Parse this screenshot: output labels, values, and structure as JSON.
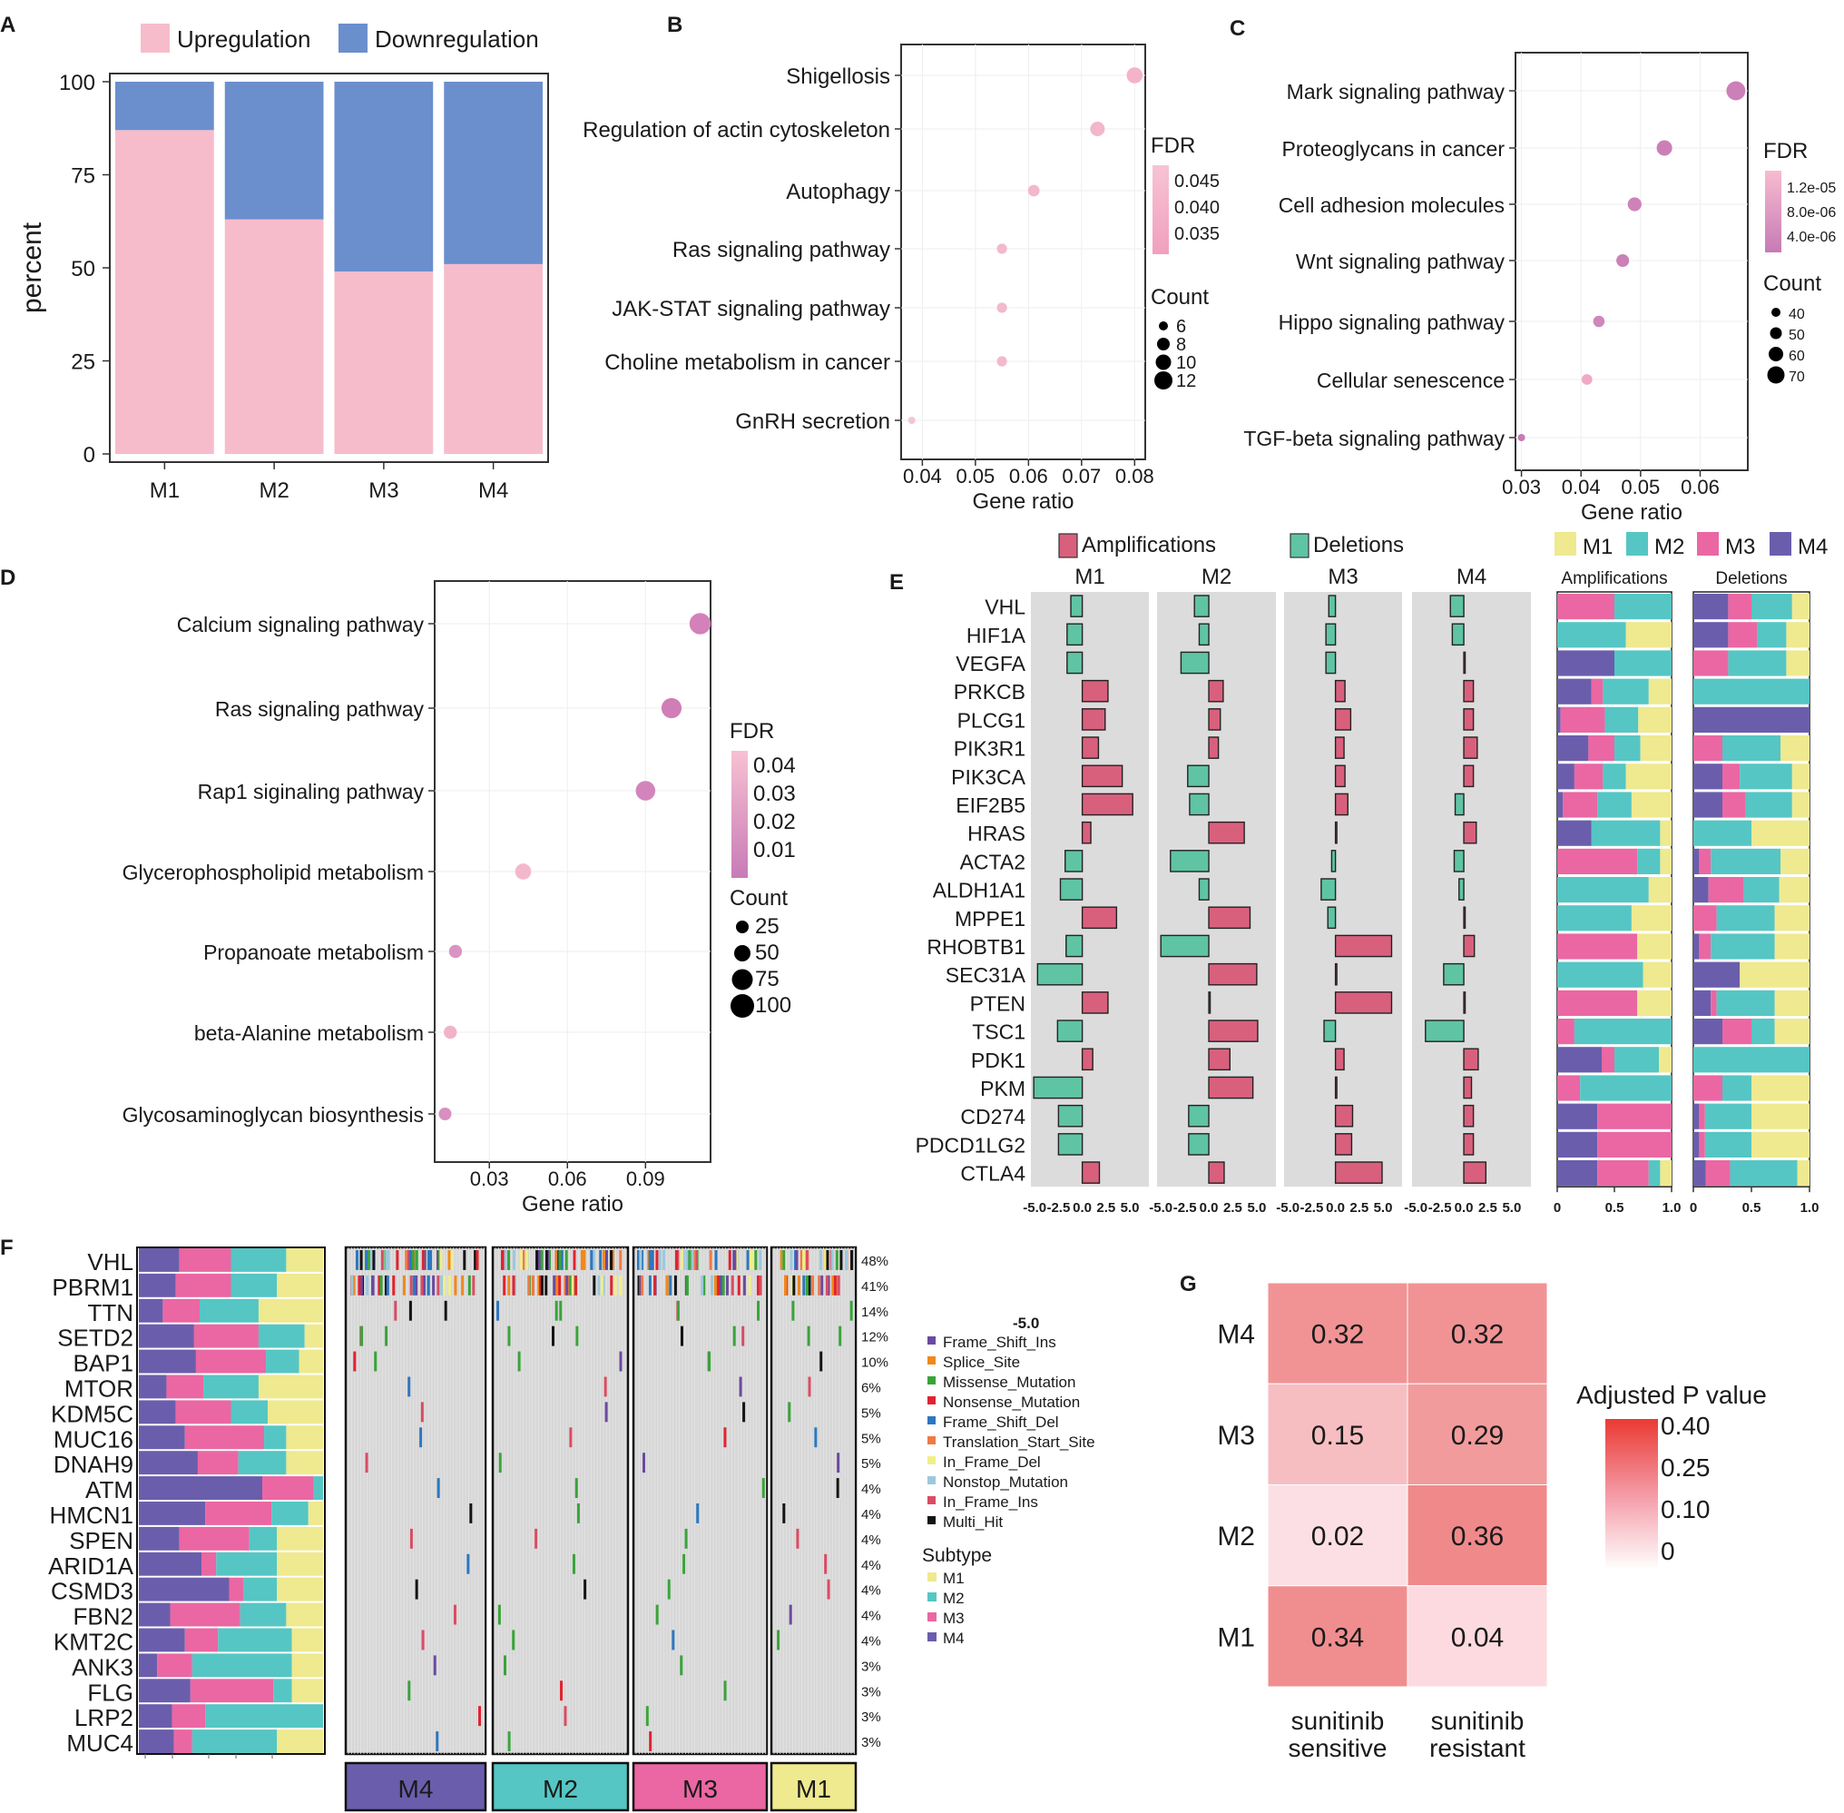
{
  "panels": {
    "a": "A",
    "b": "B",
    "c": "C",
    "d": "D",
    "e": "E",
    "f": "F",
    "g": "G"
  },
  "colors": {
    "up": "#f7bccb",
    "down": "#6b8fcc",
    "amp": "#d9607d",
    "del": "#5fc4a4",
    "m1": "#efe98f",
    "m2": "#55c6c4",
    "m3": "#ea67a3",
    "m4": "#6a5eac",
    "grey": "#dcdcdc"
  },
  "chart_data": [
    {
      "id": "A",
      "type": "bar",
      "stacked": true,
      "categories": [
        "M1",
        "M2",
        "M3",
        "M4"
      ],
      "series": [
        {
          "name": "Upregulation",
          "values": [
            87,
            63,
            49,
            51
          ]
        },
        {
          "name": "Downregulation",
          "values": [
            13,
            37,
            51,
            49
          ]
        }
      ],
      "ylabel": "percent",
      "ylim": [
        0,
        100
      ],
      "yticks": [
        0,
        25,
        50,
        75,
        100
      ],
      "legend": [
        "Upregulation",
        "Downregulation"
      ]
    },
    {
      "id": "B",
      "type": "scatter",
      "xlabel": "Gene ratio",
      "xlim": [
        0.036,
        0.082
      ],
      "xticks": [
        0.04,
        0.05,
        0.06,
        0.07,
        0.08
      ],
      "xtick_labels": [
        "0.04",
        "0.05",
        "0.06",
        "0.07",
        "0.08"
      ],
      "points": [
        {
          "label": "Shigellosis",
          "x": 0.08,
          "count": 12,
          "fdr": 0.035
        },
        {
          "label": "Regulation of actin cytoskeleton",
          "x": 0.073,
          "count": 11,
          "fdr": 0.038
        },
        {
          "label": "Autophagy",
          "x": 0.061,
          "count": 9,
          "fdr": 0.04
        },
        {
          "label": "Ras signaling pathway",
          "x": 0.055,
          "count": 8,
          "fdr": 0.042
        },
        {
          "label": "JAK-STAT signaling pathway",
          "x": 0.055,
          "count": 8,
          "fdr": 0.042
        },
        {
          "label": "Choline metabolism in cancer",
          "x": 0.055,
          "count": 8,
          "fdr": 0.042
        },
        {
          "label": "GnRH secretion",
          "x": 0.038,
          "count": 6,
          "fdr": 0.045
        }
      ],
      "fdr_title": "FDR",
      "fdr_ticks": [
        "0.045",
        "0.040",
        "0.035"
      ],
      "count_title": "Count",
      "count_ticks": [
        "6",
        "8",
        "10",
        "12"
      ]
    },
    {
      "id": "C",
      "type": "scatter",
      "xlabel": "Gene ratio",
      "xlim": [
        0.029,
        0.068
      ],
      "xticks": [
        0.03,
        0.04,
        0.05,
        0.06
      ],
      "xtick_labels": [
        "0.03",
        "0.04",
        "0.05",
        "0.06"
      ],
      "points": [
        {
          "label": "Mark signaling pathway",
          "x": 0.066,
          "count": 70,
          "fdr": 3e-06
        },
        {
          "label": "Proteoglycans in cancer",
          "x": 0.054,
          "count": 60,
          "fdr": 4e-06
        },
        {
          "label": "Cell adhesion molecules",
          "x": 0.049,
          "count": 55,
          "fdr": 5e-06
        },
        {
          "label": "Wnt signaling pathway",
          "x": 0.047,
          "count": 52,
          "fdr": 5e-06
        },
        {
          "label": "Hippo signaling pathway",
          "x": 0.043,
          "count": 48,
          "fdr": 6e-06
        },
        {
          "label": "Cellular senescence",
          "x": 0.041,
          "count": 46,
          "fdr": 1.2e-05
        },
        {
          "label": "TGF-beta signaling pathway",
          "x": 0.03,
          "count": 36,
          "fdr": 2e-06
        }
      ],
      "fdr_title": "FDR",
      "fdr_ticks": [
        "1.2e-05",
        "8.0e-06",
        "4.0e-06"
      ],
      "count_title": "Count",
      "count_ticks": [
        "40",
        "50",
        "60",
        "70"
      ]
    },
    {
      "id": "D",
      "type": "scatter",
      "xlabel": "Gene ratio",
      "xlim": [
        0.009,
        0.115
      ],
      "xticks": [
        0.03,
        0.06,
        0.09
      ],
      "xtick_labels": [
        "0.03",
        "0.06",
        "0.09"
      ],
      "points": [
        {
          "label": "Calcium signaling pathway",
          "x": 0.111,
          "count": 95,
          "fdr": 0.005
        },
        {
          "label": "Ras signaling pathway",
          "x": 0.1,
          "count": 85,
          "fdr": 0.006
        },
        {
          "label": "Rap1 siginaling pathway",
          "x": 0.09,
          "count": 80,
          "fdr": 0.008
        },
        {
          "label": "Glycerophospholipid metabolism",
          "x": 0.043,
          "count": 50,
          "fdr": 0.04
        },
        {
          "label": "Propanoate metabolism",
          "x": 0.017,
          "count": 25,
          "fdr": 0.02
        },
        {
          "label": "beta-Alanine metabolism",
          "x": 0.015,
          "count": 25,
          "fdr": 0.035
        },
        {
          "label": "Glycosaminoglycan biosynthesis",
          "x": 0.013,
          "count": 22,
          "fdr": 0.015
        }
      ],
      "fdr_title": "FDR",
      "fdr_ticks": [
        "0.04",
        "0.03",
        "0.02",
        "0.01"
      ],
      "count_title": "Count",
      "count_ticks": [
        "25",
        "50",
        "75",
        "100"
      ]
    },
    {
      "id": "E",
      "type": "bar",
      "orientation": "horizontal",
      "genes": [
        "VHL",
        "HIF1A",
        "VEGFA",
        "PRKCB",
        "PLCG1",
        "PIK3R1",
        "PIK3CA",
        "EIF2B5",
        "HRAS",
        "ACTA2",
        "ALDH1A1",
        "MPPE1",
        "RHOBTB1",
        "SEC31A",
        "PTEN",
        "TSC1",
        "PDK1",
        "PKM",
        "CD274",
        "PDCD1LG2",
        "CTLA4"
      ],
      "subtypes": [
        "M1",
        "M2",
        "M3",
        "M4"
      ],
      "values": {
        "M1": [
          -1.2,
          -1.6,
          -1.6,
          2.7,
          2.4,
          1.7,
          4.2,
          5.3,
          0.9,
          -1.8,
          -2.3,
          3.6,
          -1.7,
          -4.7,
          2.7,
          -2.6,
          1.1,
          -5.1,
          -2.5,
          -2.5,
          1.8
        ],
        "M2": [
          -1.5,
          -1.0,
          -2.9,
          1.5,
          1.2,
          1.0,
          -2.2,
          -2.0,
          3.7,
          -4.0,
          -1.0,
          4.3,
          -5.0,
          5.0,
          0.05,
          5.1,
          2.2,
          4.6,
          -2.1,
          -2.1,
          1.6
        ],
        "M3": [
          -0.7,
          -1.0,
          -1.0,
          1.0,
          1.6,
          0.9,
          1.0,
          1.3,
          0.1,
          -0.4,
          -1.5,
          -0.8,
          5.9,
          0.1,
          5.9,
          -1.2,
          0.9,
          0.1,
          1.8,
          1.7,
          4.9
        ],
        "M4": [
          -1.4,
          -1.2,
          0.1,
          1.0,
          1.0,
          1.4,
          1.0,
          -0.9,
          1.3,
          -1.0,
          -0.5,
          0.1,
          1.1,
          -2.1,
          0.1,
          -4.0,
          1.5,
          0.8,
          1.0,
          1.0,
          2.3
        ]
      },
      "xticks": [
        "-5.0",
        "-2.5",
        "0.0",
        "2.5",
        "5.0"
      ],
      "legend": [
        "Amplifications",
        "Deletions"
      ],
      "subtype_legend": [
        "M1",
        "M2",
        "M3",
        "M4"
      ],
      "prop_titles": [
        "Amplifications",
        "Deletions"
      ],
      "prop_ticks": [
        "0",
        "0.5",
        "1.0"
      ],
      "amp_props": [
        [
          0,
          0.5,
          0.5,
          0
        ],
        [
          0.4,
          0.6,
          0,
          0
        ],
        [
          0,
          0.5,
          0,
          0.5
        ],
        [
          0.2,
          0.4,
          0.1,
          0.3
        ],
        [
          0.3,
          0.3,
          0.4,
          0.03
        ],
        [
          0.3,
          0.25,
          0.25,
          0.3
        ],
        [
          0.4,
          0.2,
          0.25,
          0.15
        ],
        [
          0.35,
          0.3,
          0.3,
          0.05
        ],
        [
          0.1,
          0.6,
          0,
          0.3
        ],
        [
          0.1,
          0.2,
          0.7,
          0
        ],
        [
          0.2,
          0.8,
          0,
          0
        ],
        [
          0.35,
          0.65,
          0,
          0
        ],
        [
          0.3,
          0,
          0.7,
          0
        ],
        [
          0.25,
          0.75,
          0,
          0
        ],
        [
          0.3,
          0,
          0.7,
          0
        ],
        [
          0,
          0.85,
          0.15,
          0
        ],
        [
          0.1,
          0.35,
          0.1,
          0.35
        ],
        [
          0,
          0.8,
          0.2,
          0
        ],
        [
          0,
          0,
          0.65,
          0.35
        ],
        [
          0,
          0,
          0.65,
          0.35
        ],
        [
          0.1,
          0.1,
          0.45,
          0.35
        ]
      ],
      "del_props": [
        [
          0.15,
          0.35,
          0.2,
          0.3
        ],
        [
          0.2,
          0.25,
          0.25,
          0.3
        ],
        [
          0.2,
          0.5,
          0.3,
          0
        ],
        [
          0,
          1,
          0,
          0
        ],
        [
          0,
          0,
          0,
          1
        ],
        [
          0.25,
          0.5,
          0.25,
          0
        ],
        [
          0.15,
          0.45,
          0.15,
          0.25
        ],
        [
          0.15,
          0.4,
          0.2,
          0.25
        ],
        [
          0.5,
          0.5,
          0,
          0
        ],
        [
          0.25,
          0.6,
          0.1,
          0.05
        ],
        [
          0.3,
          0.35,
          0.35,
          0.15
        ],
        [
          0.3,
          0.5,
          0.2,
          0
        ],
        [
          0.3,
          0.55,
          0.1,
          0.05
        ],
        [
          0.6,
          0,
          0,
          0.4
        ],
        [
          0.3,
          0.5,
          0.05,
          0.15
        ],
        [
          0.3,
          0.2,
          0.25,
          0.25
        ],
        [
          0,
          1,
          0,
          0
        ],
        [
          0.5,
          0.25,
          0.25,
          0
        ],
        [
          0.5,
          0.4,
          0.05,
          0.05
        ],
        [
          0.5,
          0.4,
          0.05,
          0.05
        ],
        [
          0.1,
          0.55,
          0.2,
          0.1
        ]
      ]
    },
    {
      "id": "F",
      "type": "heatmap",
      "subtitle": "oncoplot",
      "genes": [
        "VHL",
        "PBRM1",
        "TTN",
        "SETD2",
        "BAP1",
        "MTOR",
        "KDM5C",
        "MUC16",
        "DNAH9",
        "ATM",
        "HMCN1",
        "SPEN",
        "ARID1A",
        "CSMD3",
        "FBN2",
        "KMT2C",
        "ANK3",
        "FLG",
        "LRP2",
        "MUC4"
      ],
      "percents": [
        "48%",
        "41%",
        "14%",
        "12%",
        "10%",
        "6%",
        "5%",
        "5%",
        "5%",
        "4%",
        "4%",
        "4%",
        "4%",
        "4%",
        "4%",
        "4%",
        "3%",
        "3%",
        "3%",
        "3%"
      ],
      "props": [
        [
          0.2,
          0.3,
          0.28,
          0.22
        ],
        [
          0.25,
          0.25,
          0.3,
          0.2
        ],
        [
          0.35,
          0.32,
          0.2,
          0.13
        ],
        [
          0.1,
          0.25,
          0.35,
          0.3
        ],
        [
          0.13,
          0.18,
          0.38,
          0.31
        ],
        [
          0.35,
          0.3,
          0.2,
          0.15
        ],
        [
          0.3,
          0.2,
          0.3,
          0.2
        ],
        [
          0.2,
          0.12,
          0.43,
          0.25
        ],
        [
          0.2,
          0.26,
          0.22,
          0.32
        ],
        [
          0,
          0.05,
          0.28,
          0.67
        ],
        [
          0.08,
          0.2,
          0.36,
          0.36
        ],
        [
          0.25,
          0.15,
          0.38,
          0.22
        ],
        [
          0.25,
          0.33,
          0.08,
          0.34
        ],
        [
          0.25,
          0.18,
          0.08,
          0.49
        ],
        [
          0.2,
          0.25,
          0.38,
          0.17
        ],
        [
          0.17,
          0.4,
          0.18,
          0.25
        ],
        [
          0.17,
          0.54,
          0.19,
          0.1
        ],
        [
          0.17,
          0.1,
          0.45,
          0.28
        ],
        [
          0,
          0.64,
          0.18,
          0.18
        ],
        [
          0.25,
          0.46,
          0.1,
          0.19
        ]
      ],
      "groups": [
        "M4",
        "M2",
        "M3",
        "M1"
      ],
      "group_colors": [
        "#6a5eac",
        "#55c6c4",
        "#ea67a3",
        "#efe98f"
      ],
      "variant_title": "-5.0",
      "variants": [
        "Frame_Shift_Ins",
        "Splice_Site",
        "Missense_Mutation",
        "Nonsense_Mutation",
        "Frame_Shift_Del",
        "Translation_Start_Site",
        "In_Frame_Del",
        "Nonstop_Mutation",
        "In_Frame_Ins",
        "Multi_Hit"
      ],
      "variant_colors": [
        "#6a4aa0",
        "#f0881c",
        "#3aa33a",
        "#e02330",
        "#2d77c0",
        "#f07a45",
        "#f1ee8a",
        "#9cc8dc",
        "#d94c62",
        "#141414"
      ],
      "subtype_title": "Subtype",
      "subtypes": [
        "M1",
        "M2",
        "M3",
        "M4"
      ]
    },
    {
      "id": "G",
      "type": "heatmap",
      "rows": [
        "M4",
        "M3",
        "M2",
        "M1"
      ],
      "cols": [
        "sunitinib sensitive",
        "sunitinib resistant"
      ],
      "col_lines": [
        [
          "sunitinib",
          "sensitive"
        ],
        [
          "sunitinib",
          "resistant"
        ]
      ],
      "values": [
        [
          0.32,
          0.32
        ],
        [
          0.15,
          0.29
        ],
        [
          0.02,
          0.36
        ],
        [
          0.34,
          0.04
        ]
      ],
      "labels": [
        [
          "0.32",
          "0.32"
        ],
        [
          "0.15",
          "0.29"
        ],
        [
          "0.02",
          "0.36"
        ],
        [
          "0.34",
          "0.04"
        ]
      ],
      "legend_title": "Adjusted P value",
      "legend_ticks": [
        "0.40",
        "0.25",
        "0.10",
        "0"
      ]
    }
  ]
}
